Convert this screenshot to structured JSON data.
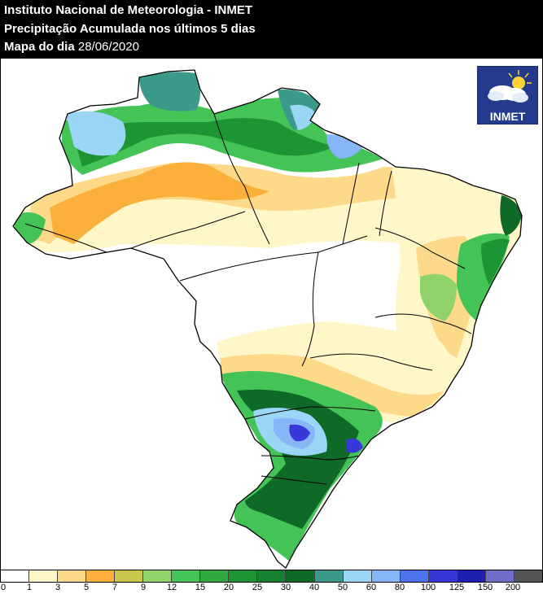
{
  "header": {
    "institute": "Instituto Nacional de Meteorologia - INMET",
    "product": "Precipitação Acumulada nos últimos 5 dias",
    "date_prefix": "Mapa do dia",
    "date": "28/06/2020"
  },
  "logo": {
    "text": "INMET",
    "icon": "sun-cloud-icon"
  },
  "legend": {
    "labels": [
      "0",
      "1",
      "3",
      "5",
      "7",
      "9",
      "12",
      "15",
      "20",
      "25",
      "30",
      "40",
      "50",
      "60",
      "80",
      "100",
      "125",
      "150",
      "200"
    ],
    "colors": [
      "#ffffff",
      "#fff7c8",
      "#fdd98a",
      "#fbb03b",
      "#c9c84a",
      "#8fd36a",
      "#44c457",
      "#2fa93f",
      "#1e9535",
      "#15802e",
      "#0e6a26",
      "#3c9a8a",
      "#9cd6f7",
      "#86b6f8",
      "#4f73ef",
      "#3838d8",
      "#1f1fb2",
      "#6e6ec8",
      "#555555"
    ]
  },
  "map": {
    "colors": {
      "pale": "#fff7c8",
      "light_orange": "#fdd98a",
      "orange": "#fbb03b",
      "light_green": "#8fd36a",
      "green": "#44c457",
      "mid_green": "#1e9535",
      "dark_green": "#0e6a26",
      "teal": "#3c9a8a",
      "light_blue": "#9cd6f7",
      "blue": "#86b6f8",
      "dark_blue": "#3838d8"
    }
  }
}
